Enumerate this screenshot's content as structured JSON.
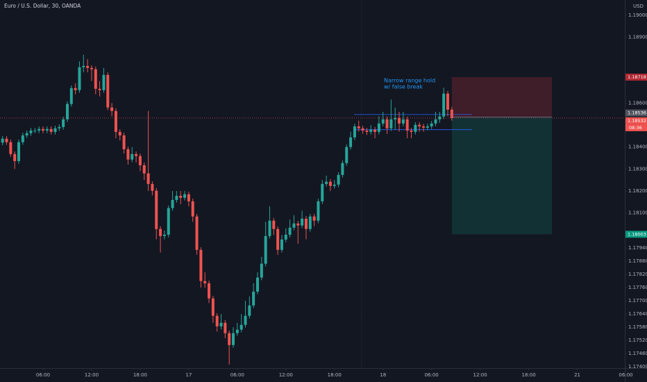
{
  "chart_data": {
    "type": "candlestick",
    "title": "Euro / U.S. Dollar, 30, OANDA",
    "currency": "USD",
    "annotation": [
      "Narrow range hold",
      "w/ false break"
    ],
    "countdown": "08:36",
    "up_color": "#26a69a",
    "down_color": "#ef5350",
    "grid": false,
    "ylim": [
      1.17394,
      1.19069
    ],
    "yticks": [
      {
        "value": 1.19,
        "label": "1.19000"
      },
      {
        "value": 1.189,
        "label": "1.18900"
      },
      {
        "value": 1.186,
        "label": "1.18600"
      },
      {
        "value": 1.184,
        "label": "1.18400"
      },
      {
        "value": 1.183,
        "label": "1.18300"
      },
      {
        "value": 1.182,
        "label": "1.18200"
      },
      {
        "value": 1.181,
        "label": "1.18100"
      },
      {
        "value": 1.1794,
        "label": "1.17940"
      },
      {
        "value": 1.1788,
        "label": "1.17880"
      },
      {
        "value": 1.1782,
        "label": "1.17820"
      },
      {
        "value": 1.1776,
        "label": "1.17760"
      },
      {
        "value": 1.177,
        "label": "1.17700"
      },
      {
        "value": 1.1764,
        "label": "1.17640"
      },
      {
        "value": 1.1758,
        "label": "1.17580"
      },
      {
        "value": 1.1752,
        "label": "1.17520"
      },
      {
        "value": 1.1746,
        "label": "1.17460"
      },
      {
        "value": 1.174,
        "label": "1.17400"
      }
    ],
    "xticks": [
      {
        "value": 10,
        "label": "06:00"
      },
      {
        "value": 22,
        "label": "12:00"
      },
      {
        "value": 34,
        "label": "18:00"
      },
      {
        "value": 46,
        "label": "17"
      },
      {
        "value": 58,
        "label": "06:00"
      },
      {
        "value": 70,
        "label": "12:00"
      },
      {
        "value": 82,
        "label": "18:00"
      },
      {
        "value": 94,
        "label": "18"
      },
      {
        "value": 106,
        "label": "06:00"
      },
      {
        "value": 118,
        "label": "12:00"
      },
      {
        "value": 130,
        "label": "18:00"
      },
      {
        "value": 142,
        "label": "21"
      },
      {
        "value": 154,
        "label": "06:00"
      }
    ],
    "hlines": [
      1.18548,
      1.18479
    ],
    "position": {
      "entry": 1.18536,
      "stop": 1.18718,
      "target": 1.18003
    },
    "open": [
      1.1842,
      1.18438,
      1.18422,
      1.18368,
      1.18336,
      1.18422,
      1.18453,
      1.18463,
      1.18475,
      1.18475,
      1.18482,
      1.18475,
      1.18482,
      1.18469,
      1.18485,
      1.18491,
      1.18526,
      1.18596,
      1.18668,
      1.18659,
      1.18763,
      1.18769,
      1.1876,
      1.18754,
      1.18665,
      1.18659,
      1.18728,
      1.1858,
      1.18564,
      1.18469,
      1.18453,
      1.1839,
      1.18343,
      1.18368,
      1.18359,
      1.18317,
      1.1828,
      1.18232,
      1.18201,
      1.18027,
      1.17995,
      1.18001,
      1.18122,
      1.18159,
      1.18178,
      1.18169,
      1.18185,
      1.18153,
      1.18084,
      1.17932,
      1.1779,
      1.1778,
      1.17711,
      1.17632,
      1.17584,
      1.176,
      1.17553,
      1.17499,
      1.17553,
      1.17569,
      1.17591,
      1.17632,
      1.17679,
      1.17742,
      1.17806,
      1.17869,
      1.17995,
      1.18065,
      1.18027,
      1.17932,
      1.17979,
      1.18001,
      1.18033,
      1.18052,
      1.18043,
      1.18074,
      1.18027,
      1.18084,
      1.18065,
      1.18153,
      1.18232,
      1.18242,
      1.18223,
      1.18229,
      1.18273,
      1.18327,
      1.184,
      1.18444,
      1.18494,
      1.18485,
      1.18475,
      1.18469,
      1.18479,
      1.18469,
      1.18507,
      1.18526,
      1.18485,
      1.18526,
      1.18532,
      1.18507,
      1.18526,
      1.18475,
      1.18469,
      1.18501,
      1.18494,
      1.18488,
      1.18494,
      1.18507,
      1.18526,
      1.18539,
      1.18643,
      1.1857
    ],
    "high": [
      1.1845,
      1.1845,
      1.18434,
      1.1838,
      1.18434,
      1.18465,
      1.18475,
      1.18487,
      1.18487,
      1.18494,
      1.18494,
      1.18494,
      1.18494,
      1.18497,
      1.18503,
      1.18538,
      1.18608,
      1.1868,
      1.1869,
      1.1879,
      1.1882,
      1.188,
      1.18772,
      1.18766,
      1.187,
      1.1876,
      1.1874,
      1.186,
      1.18576,
      1.18481,
      1.18465,
      1.18402,
      1.184,
      1.1838,
      1.18371,
      1.18329,
      1.18564,
      1.18244,
      1.18213,
      1.1804,
      1.1802,
      1.18134,
      1.182,
      1.182,
      1.182,
      1.182,
      1.18197,
      1.18165,
      1.18096,
      1.17944,
      1.1783,
      1.17792,
      1.17723,
      1.17644,
      1.1764,
      1.17612,
      1.17565,
      1.1758,
      1.176,
      1.1764,
      1.177,
      1.1772,
      1.1778,
      1.1783,
      1.179,
      1.1806,
      1.1813,
      1.18077,
      1.18039,
      1.18,
      1.1803,
      1.1807,
      1.1809,
      1.18064,
      1.1811,
      1.18086,
      1.18096,
      1.18096,
      1.18165,
      1.1825,
      1.1827,
      1.18254,
      1.1825,
      1.18285,
      1.18339,
      1.18412,
      1.1847,
      1.18506,
      1.1852,
      1.18497,
      1.18487,
      1.185,
      1.18491,
      1.1854,
      1.1856,
      1.1854,
      1.18616,
      1.1858,
      1.1856,
      1.1856,
      1.18538,
      1.18487,
      1.18513,
      1.18513,
      1.18506,
      1.18506,
      1.18519,
      1.1856,
      1.1856,
      1.1867,
      1.18655,
      1.18582
    ],
    "low": [
      1.18408,
      1.1841,
      1.18356,
      1.183,
      1.18324,
      1.1841,
      1.18441,
      1.18451,
      1.18463,
      1.18463,
      1.18463,
      1.18463,
      1.18457,
      1.18457,
      1.18473,
      1.18479,
      1.18514,
      1.18584,
      1.1864,
      1.18647,
      1.1874,
      1.1874,
      1.187,
      1.1864,
      1.1863,
      1.18647,
      1.18568,
      1.1854,
      1.1844,
      1.1843,
      1.1837,
      1.1832,
      1.18331,
      1.1833,
      1.1829,
      1.1825,
      1.182,
      1.1818,
      1.1798,
      1.1792,
      1.1798,
      1.17989,
      1.1811,
      1.18147,
      1.1814,
      1.18157,
      1.1813,
      1.1806,
      1.1791,
      1.1776,
      1.1776,
      1.1769,
      1.176,
      1.1756,
      1.1757,
      1.1753,
      1.1741,
      1.17487,
      1.17541,
      1.17557,
      1.17579,
      1.1762,
      1.17667,
      1.1773,
      1.17794,
      1.17857,
      1.17983,
      1.18,
      1.1791,
      1.1792,
      1.17967,
      1.17989,
      1.18021,
      1.1796,
      1.18031,
      1.1798,
      1.18015,
      1.1804,
      1.18053,
      1.18141,
      1.1822,
      1.182,
      1.18211,
      1.18217,
      1.18261,
      1.18315,
      1.18388,
      1.18432,
      1.1847,
      1.1846,
      1.18455,
      1.18457,
      1.1844,
      1.18457,
      1.18495,
      1.1846,
      1.18473,
      1.1848,
      1.1847,
      1.18495,
      1.1844,
      1.1844,
      1.18457,
      1.1847,
      1.1847,
      1.18476,
      1.18482,
      1.18495,
      1.1851,
      1.18527,
      1.1854,
      1.1852
    ],
    "close": [
      1.18438,
      1.18422,
      1.18368,
      1.18336,
      1.18422,
      1.18453,
      1.18463,
      1.18475,
      1.18475,
      1.18482,
      1.18475,
      1.18482,
      1.18469,
      1.18485,
      1.18491,
      1.18526,
      1.18596,
      1.18668,
      1.18659,
      1.18763,
      1.18769,
      1.1876,
      1.18754,
      1.18665,
      1.18659,
      1.18728,
      1.1858,
      1.18564,
      1.18469,
      1.18453,
      1.1839,
      1.18343,
      1.18368,
      1.18359,
      1.18317,
      1.1828,
      1.18232,
      1.18201,
      1.18027,
      1.17995,
      1.18001,
      1.18122,
      1.18159,
      1.18178,
      1.18169,
      1.18185,
      1.18153,
      1.18084,
      1.17932,
      1.1779,
      1.1778,
      1.17711,
      1.17632,
      1.17584,
      1.176,
      1.17553,
      1.17499,
      1.17553,
      1.17569,
      1.17591,
      1.17632,
      1.17679,
      1.17742,
      1.17806,
      1.17869,
      1.17995,
      1.18065,
      1.18027,
      1.17932,
      1.17979,
      1.18001,
      1.18033,
      1.18052,
      1.18043,
      1.18074,
      1.18027,
      1.18084,
      1.18065,
      1.18153,
      1.18232,
      1.18242,
      1.18223,
      1.18229,
      1.18273,
      1.18327,
      1.184,
      1.18444,
      1.18494,
      1.18485,
      1.18475,
      1.18469,
      1.18479,
      1.18469,
      1.18507,
      1.18526,
      1.18485,
      1.18526,
      1.18532,
      1.18507,
      1.18526,
      1.18475,
      1.18469,
      1.18501,
      1.18494,
      1.18488,
      1.18494,
      1.18507,
      1.18526,
      1.18539,
      1.18643,
      1.1857,
      1.18532
    ]
  }
}
